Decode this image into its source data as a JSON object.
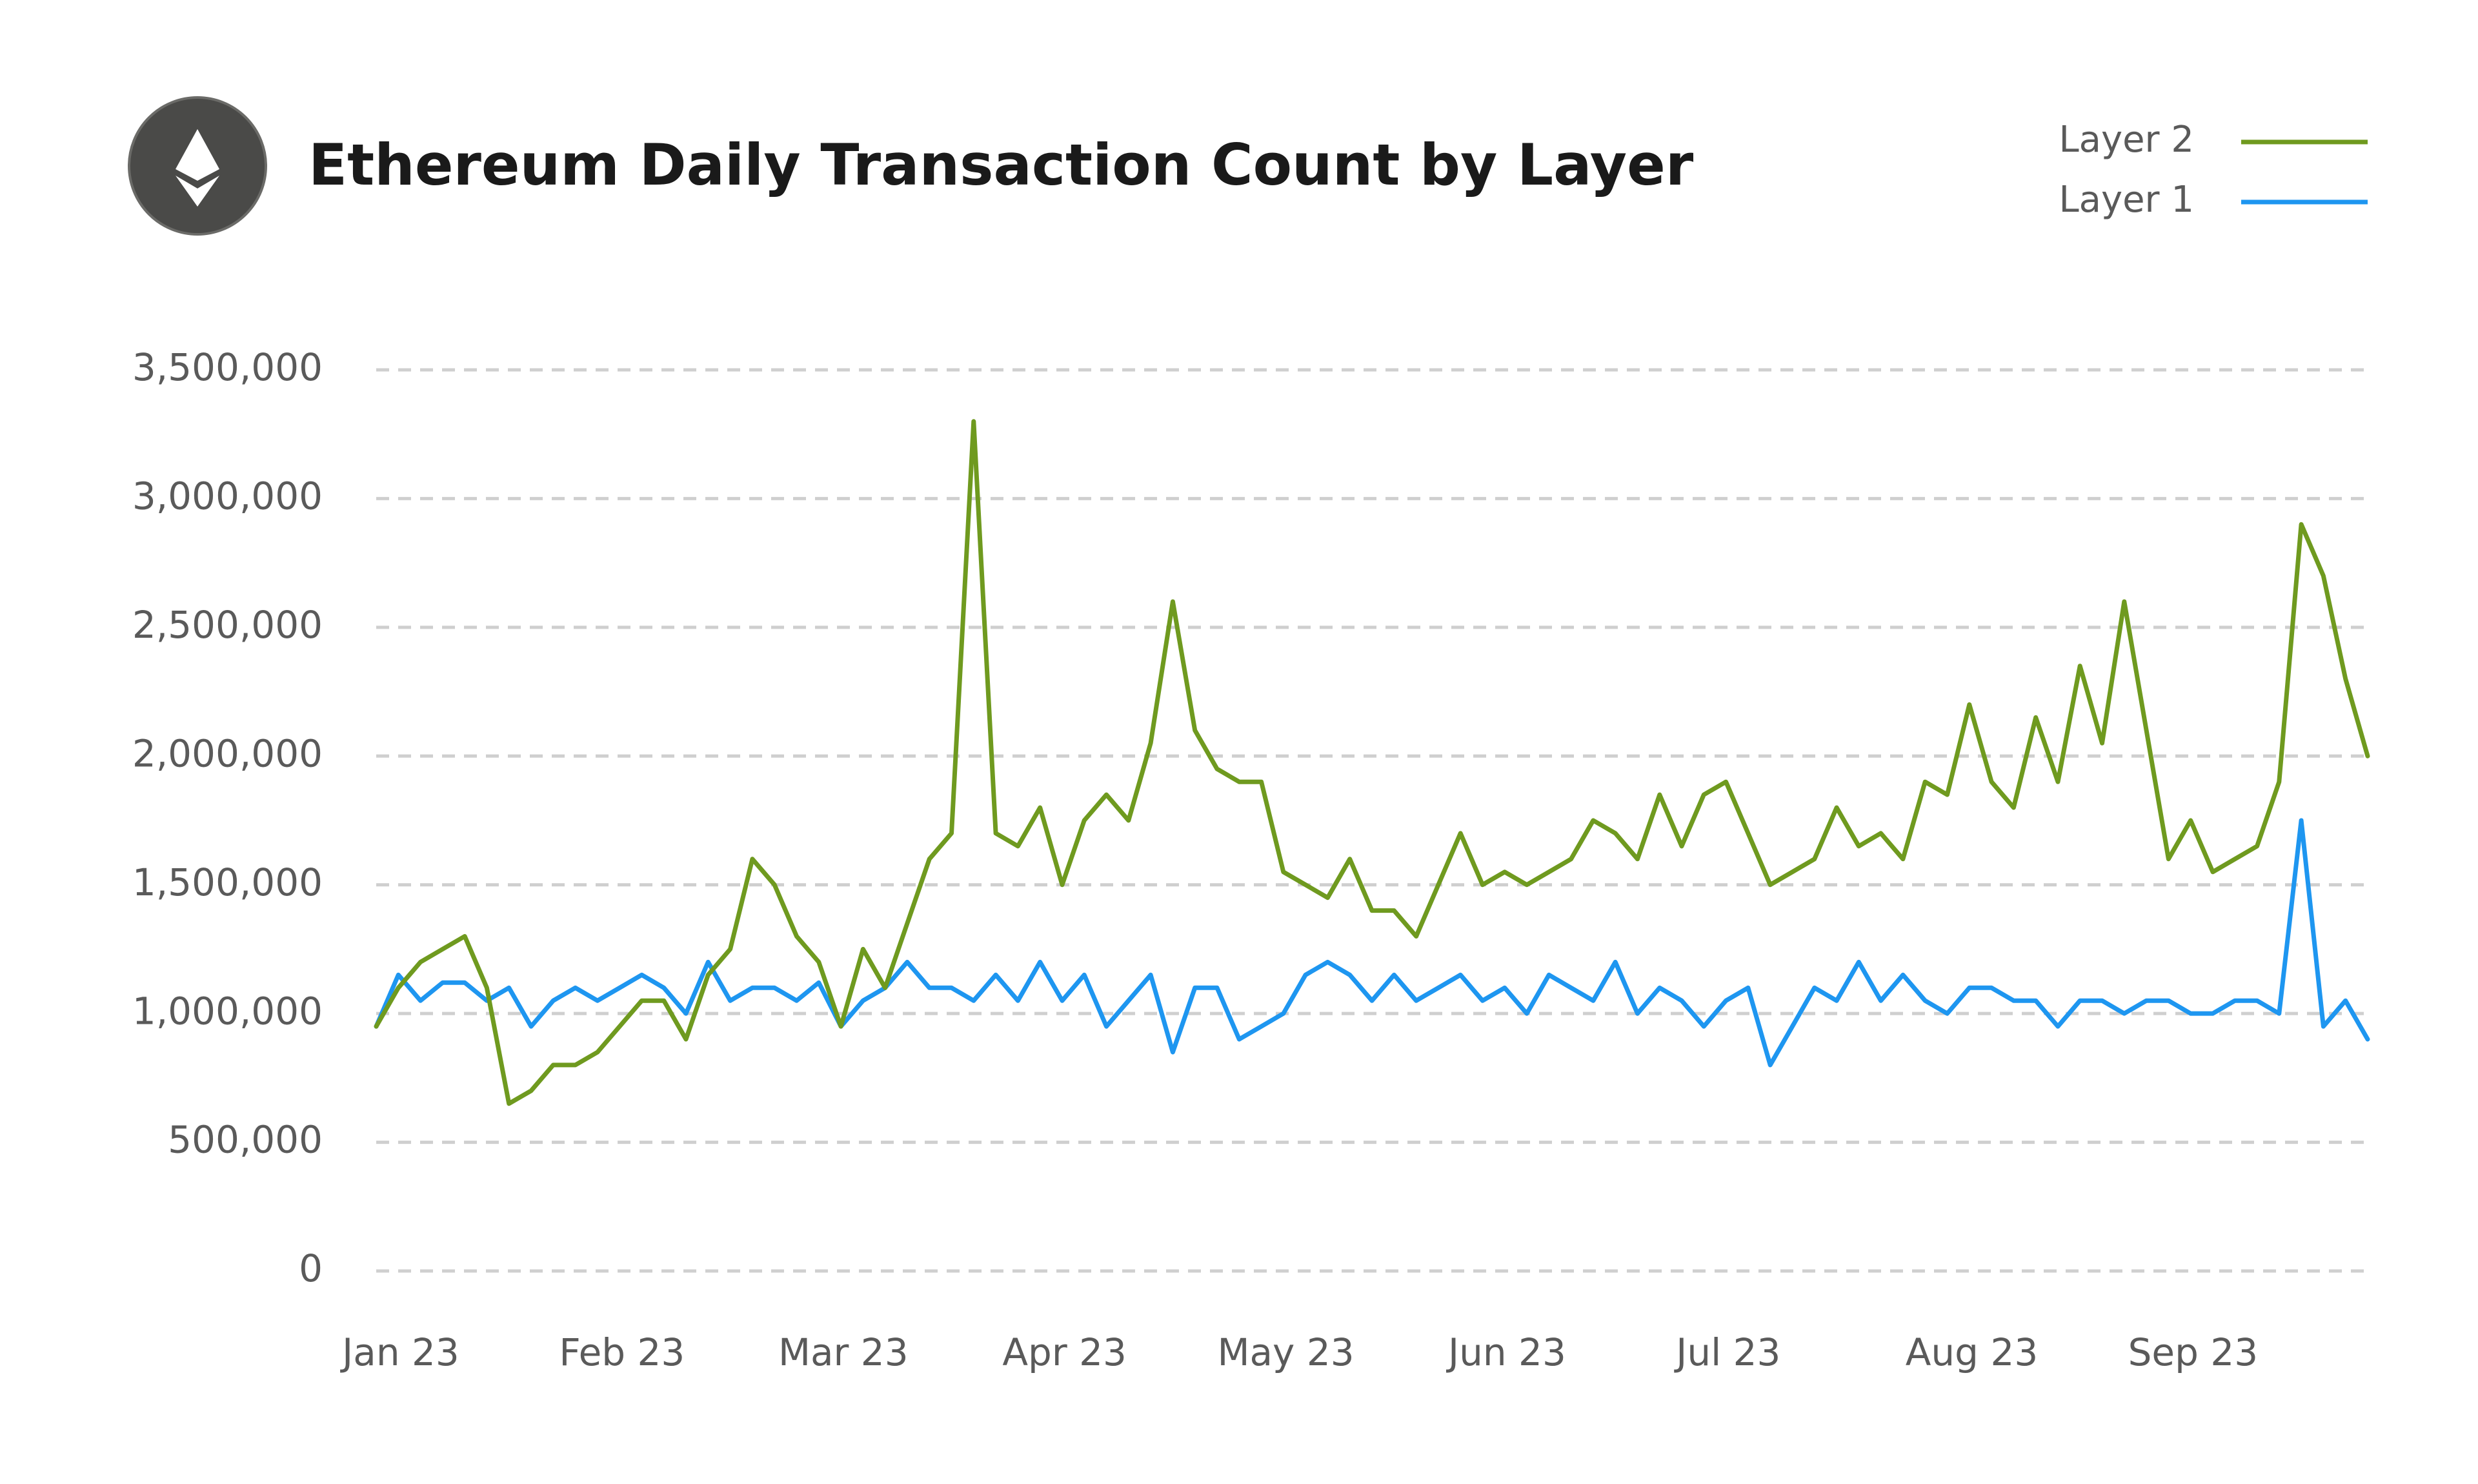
{
  "chart_data": {
    "type": "line",
    "title": "Ethereum Daily Transaction Count by Layer",
    "categories": [
      "Jan 23",
      null,
      null,
      null,
      null,
      null,
      null,
      null,
      null,
      null,
      "Feb 23",
      null,
      null,
      null,
      null,
      null,
      null,
      null,
      null,
      null,
      "Mar 23",
      null,
      null,
      null,
      null,
      null,
      null,
      null,
      null,
      null,
      "Apr 23",
      null,
      null,
      null,
      null,
      null,
      null,
      null,
      null,
      null,
      "May 23",
      null,
      null,
      null,
      null,
      null,
      null,
      null,
      null,
      null,
      "Jun 23",
      null,
      null,
      null,
      null,
      null,
      null,
      null,
      null,
      null,
      "Jul 23",
      null,
      null,
      null,
      null,
      null,
      null,
      null,
      null,
      null,
      null,
      "Aug 23",
      null,
      null,
      null,
      null,
      null,
      null,
      null,
      null,
      null,
      "Sep 23",
      null,
      null,
      null,
      null,
      null,
      null,
      null,
      null,
      null
    ],
    "series": [
      {
        "name": "Layer 2",
        "color": "#6f9a1f",
        "values": [
          950000,
          1100000,
          1200000,
          1250000,
          1300000,
          1100000,
          650000,
          700000,
          800000,
          800000,
          850000,
          950000,
          1050000,
          1050000,
          900000,
          1150000,
          1250000,
          1600000,
          1500000,
          1300000,
          1200000,
          950000,
          1250000,
          1100000,
          1350000,
          1600000,
          1700000,
          3300000,
          1700000,
          1650000,
          1800000,
          1500000,
          1750000,
          1850000,
          1750000,
          2050000,
          2600000,
          2100000,
          1950000,
          1900000,
          1900000,
          1550000,
          1500000,
          1450000,
          1600000,
          1400000,
          1400000,
          1300000,
          1500000,
          1700000,
          1500000,
          1550000,
          1500000,
          1550000,
          1600000,
          1750000,
          1700000,
          1600000,
          1850000,
          1650000,
          1850000,
          1900000,
          1700000,
          1500000,
          1550000,
          1600000,
          1800000,
          1650000,
          1700000,
          1600000,
          1900000,
          1850000,
          2200000,
          1900000,
          1800000,
          2150000,
          1900000,
          2350000,
          2050000,
          2600000,
          2100000,
          1600000,
          1750000,
          1550000,
          1600000,
          1650000,
          1900000,
          2900000,
          2700000,
          2300000,
          2000000
        ]
      },
      {
        "name": "Layer 1",
        "color": "#1e96f0",
        "values": [
          950000,
          1150000,
          1050000,
          1120000,
          1120000,
          1050000,
          1100000,
          950000,
          1050000,
          1100000,
          1050000,
          1100000,
          1150000,
          1100000,
          1000000,
          1200000,
          1050000,
          1100000,
          1100000,
          1050000,
          1120000,
          950000,
          1050000,
          1100000,
          1200000,
          1100000,
          1100000,
          1050000,
          1150000,
          1050000,
          1200000,
          1050000,
          1150000,
          950000,
          1050000,
          1150000,
          850000,
          1100000,
          1100000,
          900000,
          950000,
          1000000,
          1150000,
          1200000,
          1150000,
          1050000,
          1150000,
          1050000,
          1100000,
          1150000,
          1050000,
          1100000,
          1000000,
          1150000,
          1100000,
          1050000,
          1200000,
          1000000,
          1100000,
          1050000,
          950000,
          1050000,
          1100000,
          800000,
          950000,
          1100000,
          1050000,
          1200000,
          1050000,
          1150000,
          1050000,
          1000000,
          1100000,
          1100000,
          1050000,
          1050000,
          950000,
          1050000,
          1050000,
          1000000,
          1050000,
          1050000,
          1000000,
          1000000,
          1050000,
          1050000,
          1000000,
          1750000,
          950000,
          1050000,
          900000
        ]
      }
    ],
    "ylim": [
      0,
      3500000
    ],
    "yticks": [
      0,
      {
        "value": 500000,
        "label": "500,000"
      },
      {
        "value": 1000000,
        "label": "1,000,000"
      },
      {
        "value": 1500000,
        "label": "1,500,000"
      },
      {
        "value": 2000000,
        "label": "2,000,000"
      },
      {
        "value": 2500000,
        "label": "2,500,000"
      },
      {
        "value": 3000000,
        "label": "3,000,000"
      },
      {
        "value": 3500000,
        "label": "3,500,000"
      }
    ],
    "grid": true,
    "legend": "top-right"
  }
}
